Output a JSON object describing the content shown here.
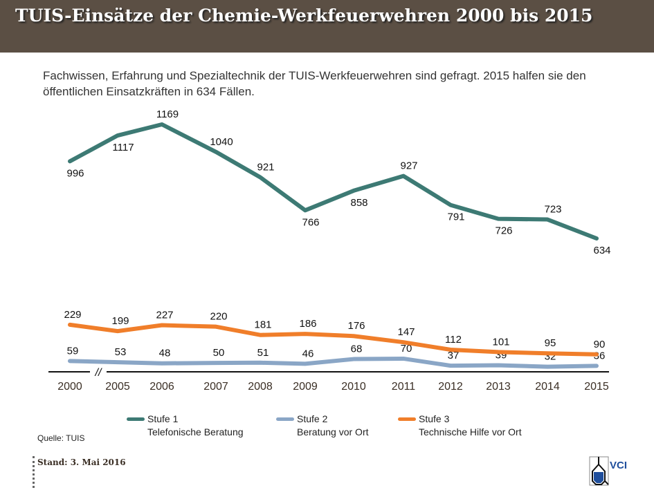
{
  "header": {
    "title": "TUIS-Einsätze der Chemie-Werkfeuerwehren 2000 bis 2015"
  },
  "subtitle": "Fachwissen, Erfahrung und Spezialtechnik der TUIS-Werkfeuerwehren sind gefragt. 2015  halfen sie den öffentlichen Einsatzkräften in 634 Fällen.",
  "chart_data": {
    "type": "line",
    "categories": [
      "2000",
      "2005",
      "2006",
      "2007",
      "2008",
      "2009",
      "2010",
      "2011",
      "2012",
      "2013",
      "2014",
      "2015"
    ],
    "axis_break": "//",
    "series": [
      {
        "name": "Stufe 1",
        "description": "Telefonische Beratung",
        "color": "#3d7a74",
        "values": [
          996,
          1117,
          1169,
          1040,
          921,
          766,
          858,
          927,
          791,
          726,
          723,
          634
        ]
      },
      {
        "name": "Stufe 2",
        "description": "Beratung vor Ort",
        "color": "#8aa6c6",
        "values": [
          59,
          53,
          48,
          50,
          51,
          46,
          68,
          70,
          37,
          39,
          32,
          36
        ]
      },
      {
        "name": "Stufe 3",
        "description": "Technische Hilfe vor Ort",
        "color": "#f07e2a",
        "values": [
          229,
          199,
          227,
          220,
          181,
          186,
          176,
          147,
          112,
          101,
          95,
          90
        ]
      }
    ],
    "grid": false,
    "legend": "bottom"
  },
  "source": "Quelle: TUIS",
  "footer": {
    "stand": "Stand: 3. Mai 2016",
    "logo": "VCI"
  }
}
